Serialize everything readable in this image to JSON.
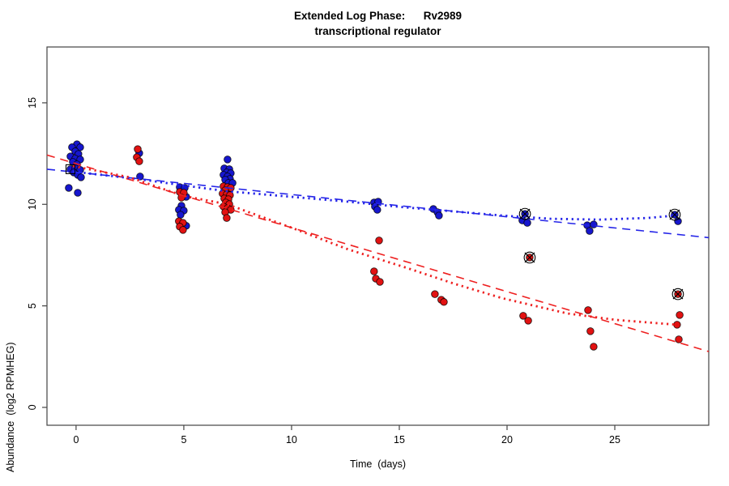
{
  "chart_data": {
    "type": "scatter",
    "title": "Extended Log Phase:      Rv2989",
    "subtitle": "transcriptional regulator",
    "xlabel": "Time  (days)",
    "ylabel": "Abundance  (log2 RPMHEG)",
    "xlim": [
      -1.35,
      29.36
    ],
    "ylim": [
      -0.88,
      17.75
    ],
    "x_ticks": [
      0,
      5,
      10,
      15,
      20,
      25
    ],
    "y_ticks": [
      0,
      5,
      10,
      15
    ],
    "grid": false,
    "legend": null,
    "colors": {
      "blue_point": "#1616CE",
      "red_point": "#E21212",
      "blue_line": "#2424E8",
      "red_line": "#EE2020",
      "marker_black": "#000000",
      "axis": "#444444"
    },
    "series": [
      {
        "name": "blue-series",
        "color": "#1616CE",
        "points": [
          [
            0.04,
            12.96
          ],
          [
            -0.19,
            12.81
          ],
          [
            0.19,
            12.81
          ],
          [
            -0.04,
            12.61
          ],
          [
            0.11,
            12.48
          ],
          [
            -0.26,
            12.36
          ],
          [
            -0.04,
            12.25
          ],
          [
            0.19,
            12.21
          ],
          [
            -0.15,
            12.09
          ],
          [
            0.04,
            11.97
          ],
          [
            -0.26,
            11.73
          ],
          [
            -0.04,
            11.77
          ],
          [
            0.19,
            11.7
          ],
          [
            -0.11,
            11.57
          ],
          [
            0.08,
            11.45
          ],
          [
            0.23,
            11.33
          ],
          [
            -0.34,
            10.81
          ],
          [
            0.08,
            10.57
          ],
          [
            2.93,
            12.52
          ],
          [
            2.97,
            11.37
          ],
          [
            4.81,
            10.85
          ],
          [
            5.04,
            10.81
          ],
          [
            5.11,
            10.37
          ],
          [
            4.89,
            9.93
          ],
          [
            4.77,
            9.73
          ],
          [
            5.0,
            9.69
          ],
          [
            4.85,
            9.49
          ],
          [
            5.11,
            8.94
          ],
          [
            7.03,
            12.21
          ],
          [
            6.88,
            11.77
          ],
          [
            7.11,
            11.73
          ],
          [
            6.99,
            11.57
          ],
          [
            7.18,
            11.53
          ],
          [
            6.84,
            11.45
          ],
          [
            7.03,
            11.37
          ],
          [
            7.14,
            11.25
          ],
          [
            6.92,
            11.21
          ],
          [
            7.07,
            11.05
          ],
          [
            7.26,
            11.05
          ],
          [
            7.11,
            10.65
          ],
          [
            13.83,
            10.09
          ],
          [
            14.02,
            10.13
          ],
          [
            13.87,
            9.89
          ],
          [
            13.98,
            9.73
          ],
          [
            16.58,
            9.77
          ],
          [
            16.77,
            9.61
          ],
          [
            16.84,
            9.45
          ],
          [
            20.83,
            9.53
          ],
          [
            20.71,
            9.21
          ],
          [
            20.94,
            9.09
          ],
          [
            23.72,
            8.97
          ],
          [
            24.02,
            9.01
          ],
          [
            23.83,
            8.69
          ],
          [
            27.78,
            9.49
          ],
          [
            27.93,
            9.17
          ]
        ]
      },
      {
        "name": "red-series",
        "color": "#E21212",
        "points": [
          [
            2.86,
            12.72
          ],
          [
            2.82,
            12.32
          ],
          [
            2.93,
            12.12
          ],
          [
            4.81,
            10.61
          ],
          [
            5.0,
            10.57
          ],
          [
            4.89,
            10.33
          ],
          [
            4.77,
            9.17
          ],
          [
            4.96,
            9.09
          ],
          [
            4.81,
            8.9
          ],
          [
            4.96,
            8.74
          ],
          [
            6.84,
            10.89
          ],
          [
            7.03,
            10.85
          ],
          [
            7.18,
            10.81
          ],
          [
            6.92,
            10.69
          ],
          [
            6.8,
            10.53
          ],
          [
            6.99,
            10.49
          ],
          [
            7.14,
            10.45
          ],
          [
            6.88,
            10.29
          ],
          [
            7.07,
            10.25
          ],
          [
            6.95,
            10.09
          ],
          [
            7.11,
            10.01
          ],
          [
            6.84,
            9.89
          ],
          [
            7.03,
            9.81
          ],
          [
            7.18,
            9.73
          ],
          [
            6.92,
            9.61
          ],
          [
            6.99,
            9.33
          ],
          [
            14.06,
            8.22
          ],
          [
            13.83,
            6.7
          ],
          [
            13.91,
            6.34
          ],
          [
            14.1,
            6.18
          ],
          [
            16.65,
            5.58
          ],
          [
            16.95,
            5.3
          ],
          [
            17.07,
            5.19
          ],
          [
            21.05,
            7.38
          ],
          [
            20.75,
            4.51
          ],
          [
            20.98,
            4.27
          ],
          [
            23.76,
            4.79
          ],
          [
            23.87,
            3.75
          ],
          [
            24.02,
            2.99
          ],
          [
            27.93,
            5.58
          ],
          [
            28.01,
            4.55
          ],
          [
            27.89,
            4.07
          ],
          [
            27.97,
            3.35
          ]
        ]
      }
    ],
    "fit_lines": [
      {
        "name": "blue-dashed-linear-fit",
        "color": "#2424E8",
        "style": "dashed",
        "points": [
          [
            -1.35,
            11.73
          ],
          [
            29.36,
            8.36
          ]
        ]
      },
      {
        "name": "red-dashed-linear-fit",
        "color": "#EE2020",
        "style": "dashed",
        "points": [
          [
            -1.35,
            12.43
          ],
          [
            29.36,
            2.75
          ]
        ]
      },
      {
        "name": "blue-dotted-smooth-fit",
        "color": "#2424E8",
        "style": "dotted",
        "points": [
          [
            -0.15,
            11.61
          ],
          [
            2.86,
            11.25
          ],
          [
            5.0,
            10.93
          ],
          [
            6.99,
            10.65
          ],
          [
            10.0,
            10.37
          ],
          [
            12.63,
            10.13
          ],
          [
            15.26,
            9.85
          ],
          [
            17.52,
            9.65
          ],
          [
            19.77,
            9.45
          ],
          [
            22.03,
            9.29
          ],
          [
            24.29,
            9.25
          ],
          [
            26.54,
            9.33
          ],
          [
            27.78,
            9.45
          ]
        ]
      },
      {
        "name": "red-dotted-smooth-fit",
        "color": "#EE2020",
        "style": "dotted",
        "points": [
          [
            -0.15,
            11.89
          ],
          [
            2.48,
            11.33
          ],
          [
            5.0,
            10.41
          ],
          [
            6.99,
            10.01
          ],
          [
            10.0,
            8.85
          ],
          [
            12.63,
            7.78
          ],
          [
            15.26,
            6.9
          ],
          [
            17.52,
            6.1
          ],
          [
            19.77,
            5.38
          ],
          [
            22.78,
            4.63
          ],
          [
            25.04,
            4.31
          ],
          [
            27.89,
            4.07
          ]
        ]
      }
    ],
    "special_markers": [
      {
        "shape": "square",
        "x": -0.26,
        "y": 11.73
      },
      {
        "shape": "circle-x",
        "x": 20.83,
        "y": 9.53
      },
      {
        "shape": "circle-x",
        "x": 21.05,
        "y": 7.38
      },
      {
        "shape": "circle-x",
        "x": 27.78,
        "y": 9.49
      },
      {
        "shape": "circle-x",
        "x": 27.93,
        "y": 5.58
      }
    ]
  }
}
